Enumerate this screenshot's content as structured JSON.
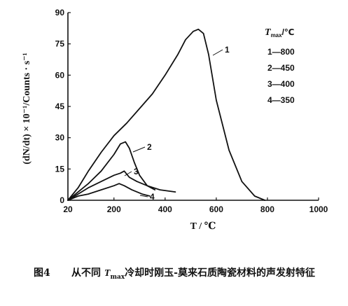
{
  "chart_data": {
    "type": "line",
    "xlabel": "T / ℃",
    "ylabel": "(dN/dt) × 10⁻¹/Counts · s⁻¹",
    "xlim": [
      20,
      1000
    ],
    "ylim": [
      0,
      90
    ],
    "x_ticks": [
      "20",
      "200",
      "400",
      "600",
      "800",
      "1000"
    ],
    "y_ticks": [
      "0",
      "15",
      "30",
      "45",
      "60",
      "75",
      "90"
    ],
    "legend": {
      "title": "T",
      "title_sub": "max",
      "title_unit": "/℃",
      "entries": [
        "1—800",
        "2—450",
        "3—400",
        "4—350"
      ],
      "placement": "top-right"
    },
    "series": [
      {
        "name": "1",
        "x": [
          20,
          60,
          100,
          150,
          200,
          250,
          300,
          350,
          400,
          450,
          480,
          510,
          530,
          550,
          570,
          600,
          650,
          700,
          750,
          790
        ],
        "y": [
          0,
          6,
          14,
          23,
          31,
          37,
          44,
          51,
          60,
          70,
          77,
          81,
          82,
          80,
          70,
          48,
          24,
          9,
          2,
          0
        ]
      },
      {
        "name": "2",
        "x": [
          20,
          60,
          100,
          150,
          200,
          225,
          245,
          260,
          280,
          300,
          330,
          360
        ],
        "y": [
          0,
          4,
          8,
          14,
          22,
          27,
          28,
          25,
          18,
          12,
          7,
          5
        ]
      },
      {
        "name": "3",
        "x": [
          20,
          60,
          100,
          150,
          200,
          225,
          240,
          260,
          290,
          330,
          380,
          440
        ],
        "y": [
          0,
          3,
          6,
          9,
          12,
          13,
          14,
          11,
          9,
          7,
          5,
          4
        ]
      },
      {
        "name": "4",
        "x": [
          20,
          60,
          100,
          150,
          200,
          220,
          240,
          270,
          310,
          340
        ],
        "y": [
          0,
          2,
          3,
          5,
          7,
          8,
          7,
          5,
          3,
          2
        ]
      }
    ],
    "curve_labels": [
      "1",
      "2",
      "3",
      "4"
    ]
  },
  "caption": {
    "figure_no": "图4",
    "text_before": "从不同",
    "tmax": "T",
    "tmax_sub": "max",
    "text_after": "冷却时刚玉-莫来石质陶瓷材料的声发射特征"
  }
}
